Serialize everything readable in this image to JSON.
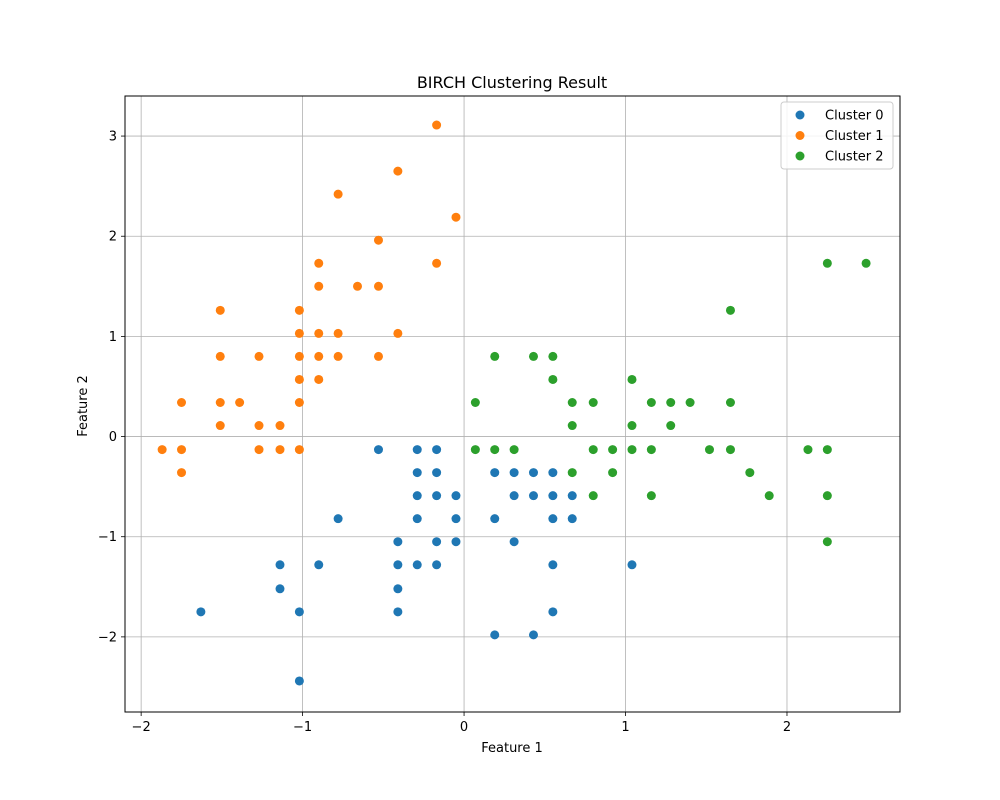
{
  "chart_data": {
    "type": "scatter",
    "title": "BIRCH Clustering Result",
    "xlabel": "Feature 1",
    "ylabel": "Feature 2",
    "xlim": [
      -2.1,
      2.7
    ],
    "ylim": [
      -2.75,
      3.4
    ],
    "xticks": [
      -2,
      -1,
      0,
      1,
      2
    ],
    "yticks": [
      -2,
      -1,
      0,
      1,
      2,
      3
    ],
    "grid": true,
    "legend_position": "top-right",
    "series": [
      {
        "name": "Cluster 0",
        "color": "#1f77b4",
        "points": [
          [
            -0.53,
            -0.13
          ],
          [
            -0.29,
            -0.13
          ],
          [
            -0.17,
            -0.13
          ],
          [
            -0.29,
            -0.36
          ],
          [
            -0.17,
            -0.36
          ],
          [
            0.19,
            -0.36
          ],
          [
            0.31,
            -0.36
          ],
          [
            0.43,
            -0.36
          ],
          [
            0.55,
            -0.36
          ],
          [
            -0.29,
            -0.59
          ],
          [
            -0.17,
            -0.59
          ],
          [
            -0.05,
            -0.59
          ],
          [
            0.31,
            -0.59
          ],
          [
            0.43,
            -0.59
          ],
          [
            0.55,
            -0.59
          ],
          [
            0.67,
            -0.59
          ],
          [
            -0.78,
            -0.82
          ],
          [
            -0.29,
            -0.82
          ],
          [
            -0.05,
            -0.82
          ],
          [
            0.19,
            -0.82
          ],
          [
            0.55,
            -0.82
          ],
          [
            0.67,
            -0.82
          ],
          [
            -0.41,
            -1.05
          ],
          [
            -0.17,
            -1.05
          ],
          [
            -0.05,
            -1.05
          ],
          [
            0.31,
            -1.05
          ],
          [
            -1.14,
            -1.28
          ],
          [
            -0.9,
            -1.28
          ],
          [
            -0.41,
            -1.28
          ],
          [
            -0.29,
            -1.28
          ],
          [
            -0.17,
            -1.28
          ],
          [
            0.55,
            -1.28
          ],
          [
            1.04,
            -1.28
          ],
          [
            -1.14,
            -1.52
          ],
          [
            -0.41,
            -1.52
          ],
          [
            -1.63,
            -1.75
          ],
          [
            -1.02,
            -1.75
          ],
          [
            -0.41,
            -1.75
          ],
          [
            0.55,
            -1.75
          ],
          [
            0.19,
            -1.98
          ],
          [
            0.43,
            -1.98
          ],
          [
            -1.02,
            -2.44
          ]
        ]
      },
      {
        "name": "Cluster 1",
        "color": "#ff7f0e",
        "points": [
          [
            -0.17,
            3.11
          ],
          [
            -0.41,
            2.65
          ],
          [
            -0.78,
            2.42
          ],
          [
            -0.05,
            2.19
          ],
          [
            -0.53,
            1.96
          ],
          [
            -0.9,
            1.73
          ],
          [
            -0.17,
            1.73
          ],
          [
            -0.9,
            1.5
          ],
          [
            -0.66,
            1.5
          ],
          [
            -0.53,
            1.5
          ],
          [
            -1.51,
            1.26
          ],
          [
            -1.02,
            1.26
          ],
          [
            -1.02,
            1.03
          ],
          [
            -0.9,
            1.03
          ],
          [
            -0.78,
            1.03
          ],
          [
            -0.41,
            1.03
          ],
          [
            -1.51,
            0.8
          ],
          [
            -1.27,
            0.8
          ],
          [
            -1.02,
            0.8
          ],
          [
            -0.9,
            0.8
          ],
          [
            -0.78,
            0.8
          ],
          [
            -0.53,
            0.8
          ],
          [
            -1.02,
            0.57
          ],
          [
            -0.9,
            0.57
          ],
          [
            -1.75,
            0.34
          ],
          [
            -1.51,
            0.34
          ],
          [
            -1.39,
            0.34
          ],
          [
            -1.02,
            0.34
          ],
          [
            -1.51,
            0.11
          ],
          [
            -1.27,
            0.11
          ],
          [
            -1.14,
            0.11
          ],
          [
            -1.87,
            -0.13
          ],
          [
            -1.75,
            -0.13
          ],
          [
            -1.27,
            -0.13
          ],
          [
            -1.14,
            -0.13
          ],
          [
            -1.02,
            -0.13
          ],
          [
            -1.75,
            -0.36
          ]
        ]
      },
      {
        "name": "Cluster 2",
        "color": "#2ca02c",
        "points": [
          [
            2.25,
            1.73
          ],
          [
            2.49,
            1.73
          ],
          [
            1.65,
            1.26
          ],
          [
            0.19,
            0.8
          ],
          [
            0.43,
            0.8
          ],
          [
            0.55,
            0.8
          ],
          [
            0.55,
            0.57
          ],
          [
            1.04,
            0.57
          ],
          [
            0.07,
            0.34
          ],
          [
            0.67,
            0.34
          ],
          [
            0.8,
            0.34
          ],
          [
            1.16,
            0.34
          ],
          [
            1.28,
            0.34
          ],
          [
            1.4,
            0.34
          ],
          [
            1.65,
            0.34
          ],
          [
            0.67,
            0.11
          ],
          [
            1.04,
            0.11
          ],
          [
            1.28,
            0.11
          ],
          [
            0.07,
            -0.13
          ],
          [
            0.19,
            -0.13
          ],
          [
            0.31,
            -0.13
          ],
          [
            0.8,
            -0.13
          ],
          [
            0.92,
            -0.13
          ],
          [
            1.04,
            -0.13
          ],
          [
            1.16,
            -0.13
          ],
          [
            1.52,
            -0.13
          ],
          [
            1.65,
            -0.13
          ],
          [
            2.13,
            -0.13
          ],
          [
            2.25,
            -0.13
          ],
          [
            0.67,
            -0.36
          ],
          [
            0.92,
            -0.36
          ],
          [
            1.77,
            -0.36
          ],
          [
            0.8,
            -0.59
          ],
          [
            1.16,
            -0.59
          ],
          [
            1.89,
            -0.59
          ],
          [
            2.25,
            -0.59
          ],
          [
            2.25,
            -1.05
          ]
        ]
      }
    ]
  }
}
